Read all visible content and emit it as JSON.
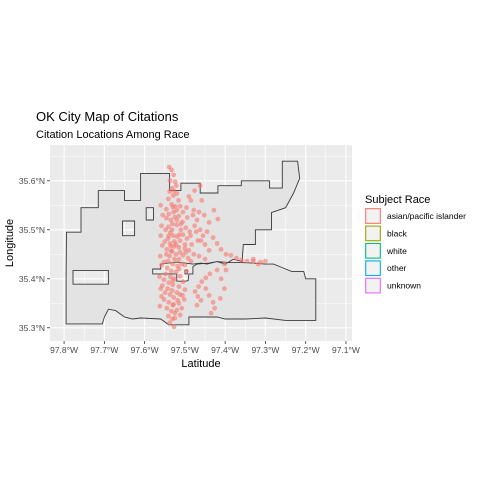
{
  "chart_data": {
    "type": "scatter",
    "title": "OK City Map of Citations",
    "subtitle": "Citation Locations Among Race",
    "xlabel": "Latitude",
    "ylabel": "Longitude",
    "x_ticks": [
      "97.8°W",
      "97.7°W",
      "97.6°W",
      "97.5°W",
      "97.4°W",
      "97.3°W",
      "97.2°W",
      "97.1°W"
    ],
    "y_ticks": [
      "35.3°N",
      "35.4°N",
      "35.5°N",
      "35.6°N"
    ],
    "x_tick_values": [
      -97.8,
      -97.7,
      -97.6,
      -97.5,
      -97.4,
      -97.3,
      -97.2,
      -97.1
    ],
    "y_tick_values": [
      35.3,
      35.4,
      35.5,
      35.6
    ],
    "xlim": [
      -97.835,
      -97.085
    ],
    "ylim": [
      35.273,
      35.673
    ],
    "grid": true,
    "legend_placement": "right",
    "legend": {
      "title": "Subject Race",
      "entries": [
        {
          "label": "asian/pacific islander",
          "color": "#F8766D"
        },
        {
          "label": "black",
          "color": "#A3A500"
        },
        {
          "label": "white",
          "color": "#00BF7D"
        },
        {
          "label": "other",
          "color": "#00B0F6"
        },
        {
          "label": "unknown",
          "color": "#E76BF3"
        }
      ]
    },
    "boundary": {
      "outer": [
        [
          -97.795,
          35.308
        ],
        [
          -97.795,
          35.405
        ],
        [
          -97.794,
          35.495
        ],
        [
          -97.758,
          35.495
        ],
        [
          -97.758,
          35.545
        ],
        [
          -97.715,
          35.545
        ],
        [
          -97.715,
          35.58
        ],
        [
          -97.65,
          35.58
        ],
        [
          -97.65,
          35.56
        ],
        [
          -97.61,
          35.56
        ],
        [
          -97.61,
          35.615
        ],
        [
          -97.538,
          35.615
        ],
        [
          -97.538,
          35.58
        ],
        [
          -97.51,
          35.58
        ],
        [
          -97.51,
          35.595
        ],
        [
          -97.462,
          35.595
        ],
        [
          -97.462,
          35.575
        ],
        [
          -97.418,
          35.575
        ],
        [
          -97.418,
          35.59
        ],
        [
          -97.36,
          35.59
        ],
        [
          -97.36,
          35.6
        ],
        [
          -97.29,
          35.6
        ],
        [
          -97.29,
          35.585
        ],
        [
          -97.258,
          35.585
        ],
        [
          -97.258,
          35.64
        ],
        [
          -97.22,
          35.64
        ],
        [
          -97.215,
          35.605
        ],
        [
          -97.23,
          35.575
        ],
        [
          -97.25,
          35.545
        ],
        [
          -97.285,
          35.535
        ],
        [
          -97.285,
          35.5
        ],
        [
          -97.325,
          35.5
        ],
        [
          -97.325,
          35.47
        ],
        [
          -97.355,
          35.47
        ],
        [
          -97.358,
          35.435
        ],
        [
          -97.38,
          35.44
        ],
        [
          -97.4,
          35.43
        ],
        [
          -97.42,
          35.435
        ],
        [
          -97.445,
          35.43
        ],
        [
          -97.46,
          35.432
        ],
        [
          -97.48,
          35.43
        ],
        [
          -97.5,
          35.432
        ],
        [
          -97.52,
          35.434
        ],
        [
          -97.56,
          35.43
        ],
        [
          -97.56,
          35.42
        ],
        [
          -97.58,
          35.42
        ],
        [
          -97.58,
          35.41
        ],
        [
          -97.56,
          35.41
        ],
        [
          -97.52,
          35.41
        ],
        [
          -97.52,
          35.395
        ],
        [
          -97.5,
          35.395
        ],
        [
          -97.492,
          35.396
        ],
        [
          -97.49,
          35.41
        ],
        [
          -97.48,
          35.41
        ],
        [
          -97.48,
          35.425
        ],
        [
          -97.47,
          35.43
        ],
        [
          -97.44,
          35.432
        ],
        [
          -97.42,
          35.435
        ],
        [
          -97.39,
          35.433
        ],
        [
          -97.36,
          35.433
        ],
        [
          -97.33,
          35.432
        ],
        [
          -97.3,
          35.43
        ],
        [
          -97.28,
          35.43
        ],
        [
          -97.265,
          35.425
        ],
        [
          -97.25,
          35.42
        ],
        [
          -97.235,
          35.415
        ],
        [
          -97.205,
          35.415
        ],
        [
          -97.2,
          35.4
        ],
        [
          -97.175,
          35.4
        ],
        [
          -97.175,
          35.315
        ],
        [
          -97.25,
          35.315
        ],
        [
          -97.3,
          35.32
        ],
        [
          -97.35,
          35.318
        ],
        [
          -97.4,
          35.318
        ],
        [
          -97.42,
          35.322
        ],
        [
          -97.49,
          35.322
        ],
        [
          -97.49,
          35.306
        ],
        [
          -97.54,
          35.306
        ],
        [
          -97.56,
          35.318
        ],
        [
          -97.61,
          35.32
        ],
        [
          -97.63,
          35.318
        ],
        [
          -97.65,
          35.322
        ],
        [
          -97.672,
          35.335
        ],
        [
          -97.69,
          35.338
        ],
        [
          -97.7,
          35.322
        ],
        [
          -97.705,
          35.308
        ],
        [
          -97.79,
          35.308
        ]
      ],
      "holes": [
        [
          [
            -97.778,
            35.417
          ],
          [
            -97.69,
            35.417
          ],
          [
            -97.69,
            35.389
          ],
          [
            -97.778,
            35.389
          ],
          [
            -97.778,
            35.417
          ]
        ],
        [
          [
            -97.655,
            35.518
          ],
          [
            -97.625,
            35.518
          ],
          [
            -97.625,
            35.488
          ],
          [
            -97.655,
            35.488
          ],
          [
            -97.655,
            35.518
          ]
        ],
        [
          [
            -97.596,
            35.545
          ],
          [
            -97.578,
            35.545
          ],
          [
            -97.578,
            35.52
          ],
          [
            -97.596,
            35.52
          ],
          [
            -97.596,
            35.545
          ]
        ],
        [
          [
            -97.5,
            35.418
          ],
          [
            -97.494,
            35.418
          ],
          [
            -97.494,
            35.41
          ],
          [
            -97.5,
            35.41
          ],
          [
            -97.5,
            35.418
          ]
        ]
      ]
    },
    "series": [
      {
        "name": "asian/pacific islander",
        "color": "#F8766D",
        "points": [
          [
            -97.539,
            35.628
          ],
          [
            -97.533,
            35.622
          ],
          [
            -97.528,
            35.612
          ],
          [
            -97.524,
            35.598
          ],
          [
            -97.521,
            35.59
          ],
          [
            -97.532,
            35.585
          ],
          [
            -97.538,
            35.578
          ],
          [
            -97.529,
            35.57
          ],
          [
            -97.516,
            35.56
          ],
          [
            -97.541,
            35.563
          ],
          [
            -97.533,
            35.552
          ],
          [
            -97.524,
            35.548
          ],
          [
            -97.52,
            35.54
          ],
          [
            -97.528,
            35.536
          ],
          [
            -97.54,
            35.532
          ],
          [
            -97.546,
            35.524
          ],
          [
            -97.535,
            35.52
          ],
          [
            -97.531,
            35.512
          ],
          [
            -97.52,
            35.51
          ],
          [
            -97.541,
            35.506
          ],
          [
            -97.548,
            35.5
          ],
          [
            -97.536,
            35.494
          ],
          [
            -97.529,
            35.488
          ],
          [
            -97.519,
            35.486
          ],
          [
            -97.542,
            35.482
          ],
          [
            -97.55,
            35.476
          ],
          [
            -97.537,
            35.472
          ],
          [
            -97.527,
            35.466
          ],
          [
            -97.515,
            35.464
          ],
          [
            -97.545,
            35.46
          ],
          [
            -97.532,
            35.456
          ],
          [
            -97.522,
            35.45
          ],
          [
            -97.538,
            35.446
          ],
          [
            -97.526,
            35.44
          ],
          [
            -97.542,
            35.436
          ],
          [
            -97.53,
            35.43
          ],
          [
            -97.518,
            35.426
          ],
          [
            -97.544,
            35.422
          ],
          [
            -97.534,
            35.416
          ],
          [
            -97.522,
            35.414
          ],
          [
            -97.548,
            35.41
          ],
          [
            -97.536,
            35.404
          ],
          [
            -97.526,
            35.4
          ],
          [
            -97.552,
            35.398
          ],
          [
            -97.54,
            35.392
          ],
          [
            -97.53,
            35.388
          ],
          [
            -97.556,
            35.386
          ],
          [
            -97.543,
            35.38
          ],
          [
            -97.532,
            35.376
          ],
          [
            -97.549,
            35.372
          ],
          [
            -97.537,
            35.368
          ],
          [
            -97.528,
            35.362
          ],
          [
            -97.552,
            35.358
          ],
          [
            -97.54,
            35.352
          ],
          [
            -97.53,
            35.346
          ],
          [
            -97.545,
            35.34
          ],
          [
            -97.534,
            35.334
          ],
          [
            -97.525,
            35.33
          ],
          [
            -97.541,
            35.324
          ],
          [
            -97.531,
            35.318
          ],
          [
            -97.538,
            35.31
          ],
          [
            -97.527,
            35.302
          ],
          [
            -97.53,
            35.546
          ],
          [
            -97.525,
            35.526
          ],
          [
            -97.51,
            35.5
          ],
          [
            -97.505,
            35.49
          ],
          [
            -97.512,
            35.478
          ],
          [
            -97.5,
            35.47
          ],
          [
            -97.495,
            35.482
          ],
          [
            -97.488,
            35.496
          ],
          [
            -97.498,
            35.504
          ],
          [
            -97.506,
            35.516
          ],
          [
            -97.494,
            35.525
          ],
          [
            -97.48,
            35.53
          ],
          [
            -97.47,
            35.52
          ],
          [
            -97.476,
            35.508
          ],
          [
            -97.462,
            35.5
          ],
          [
            -97.455,
            35.488
          ],
          [
            -97.468,
            35.478
          ],
          [
            -97.483,
            35.47
          ],
          [
            -97.49,
            35.458
          ],
          [
            -97.478,
            35.45
          ],
          [
            -97.465,
            35.446
          ],
          [
            -97.45,
            35.44
          ],
          [
            -97.485,
            35.436
          ],
          [
            -97.5,
            35.428
          ],
          [
            -97.496,
            35.415
          ],
          [
            -97.512,
            35.405
          ],
          [
            -97.505,
            35.394
          ],
          [
            -97.515,
            35.384
          ],
          [
            -97.5,
            35.378
          ],
          [
            -97.512,
            35.368
          ],
          [
            -97.502,
            35.358
          ],
          [
            -97.515,
            35.35
          ],
          [
            -97.508,
            35.34
          ],
          [
            -97.52,
            35.336
          ],
          [
            -97.512,
            35.326
          ],
          [
            -97.452,
            35.53
          ],
          [
            -97.44,
            35.515
          ],
          [
            -97.428,
            35.54
          ],
          [
            -97.418,
            35.522
          ],
          [
            -97.458,
            35.56
          ],
          [
            -97.49,
            35.568
          ],
          [
            -97.476,
            35.58
          ],
          [
            -97.462,
            35.59
          ],
          [
            -97.445,
            35.496
          ],
          [
            -97.43,
            35.484
          ],
          [
            -97.42,
            35.472
          ],
          [
            -97.41,
            35.46
          ],
          [
            -97.398,
            35.45
          ],
          [
            -97.386,
            35.448
          ],
          [
            -97.372,
            35.442
          ],
          [
            -97.36,
            35.438
          ],
          [
            -97.346,
            35.436
          ],
          [
            -97.33,
            35.436
          ],
          [
            -97.312,
            35.434
          ],
          [
            -97.3,
            35.436
          ],
          [
            -97.402,
            35.43
          ],
          [
            -97.42,
            35.418
          ],
          [
            -97.438,
            35.41
          ],
          [
            -97.448,
            35.402
          ],
          [
            -97.458,
            35.394
          ],
          [
            -97.466,
            35.384
          ],
          [
            -97.475,
            35.374
          ],
          [
            -97.468,
            35.364
          ],
          [
            -97.46,
            35.356
          ],
          [
            -97.47,
            35.346
          ],
          [
            -97.448,
            35.38
          ],
          [
            -97.44,
            35.366
          ],
          [
            -97.43,
            35.352
          ],
          [
            -97.426,
            35.34
          ],
          [
            -97.435,
            35.33
          ],
          [
            -97.412,
            35.36
          ],
          [
            -97.402,
            35.38
          ],
          [
            -97.56,
            35.55
          ],
          [
            -97.555,
            35.53
          ],
          [
            -97.558,
            35.508
          ],
          [
            -97.56,
            35.488
          ],
          [
            -97.556,
            35.468
          ],
          [
            -97.561,
            35.446
          ],
          [
            -97.558,
            35.428
          ],
          [
            -97.563,
            35.404
          ],
          [
            -97.56,
            35.38
          ],
          [
            -97.558,
            35.364
          ],
          [
            -97.562,
            35.344
          ],
          [
            -97.485,
            35.56
          ],
          [
            -97.496,
            35.545
          ],
          [
            -97.505,
            35.536
          ],
          [
            -97.515,
            35.528
          ],
          [
            -97.505,
            35.448
          ],
          [
            -97.492,
            35.442
          ],
          [
            -97.515,
            35.42
          ],
          [
            -97.53,
            35.396
          ],
          [
            -97.52,
            35.372
          ],
          [
            -97.506,
            35.366
          ],
          [
            -97.518,
            35.356
          ],
          [
            -97.528,
            35.348
          ],
          [
            -97.525,
            35.32
          ],
          [
            -97.478,
            35.54
          ],
          [
            -97.465,
            35.536
          ],
          [
            -97.45,
            35.47
          ],
          [
            -97.44,
            35.458
          ],
          [
            -97.546,
            35.542
          ],
          [
            -97.52,
            35.574
          ],
          [
            -97.512,
            35.548
          ],
          [
            -97.537,
            35.6
          ],
          [
            -97.527,
            35.58
          ],
          [
            -97.514,
            35.49
          ],
          [
            -97.526,
            35.476
          ],
          [
            -97.534,
            35.456
          ],
          [
            -97.546,
            35.45
          ],
          [
            -97.552,
            35.434
          ],
          [
            -97.515,
            35.44
          ],
          [
            -97.508,
            35.43
          ],
          [
            -97.498,
            35.454
          ],
          [
            -97.486,
            35.488
          ],
          [
            -97.472,
            35.496
          ],
          [
            -97.46,
            35.478
          ],
          [
            -97.41,
            35.4
          ],
          [
            -97.398,
            35.418
          ],
          [
            -97.33,
            35.44
          ],
          [
            -97.318,
            35.43
          ],
          [
            -97.54,
            35.488
          ],
          [
            -97.532,
            35.5
          ],
          [
            -97.52,
            35.52
          ],
          [
            -97.51,
            35.512
          ],
          [
            -97.535,
            35.466
          ],
          [
            -97.522,
            35.47
          ],
          [
            -97.512,
            35.454
          ],
          [
            -97.5,
            35.462
          ]
        ]
      }
    ]
  }
}
